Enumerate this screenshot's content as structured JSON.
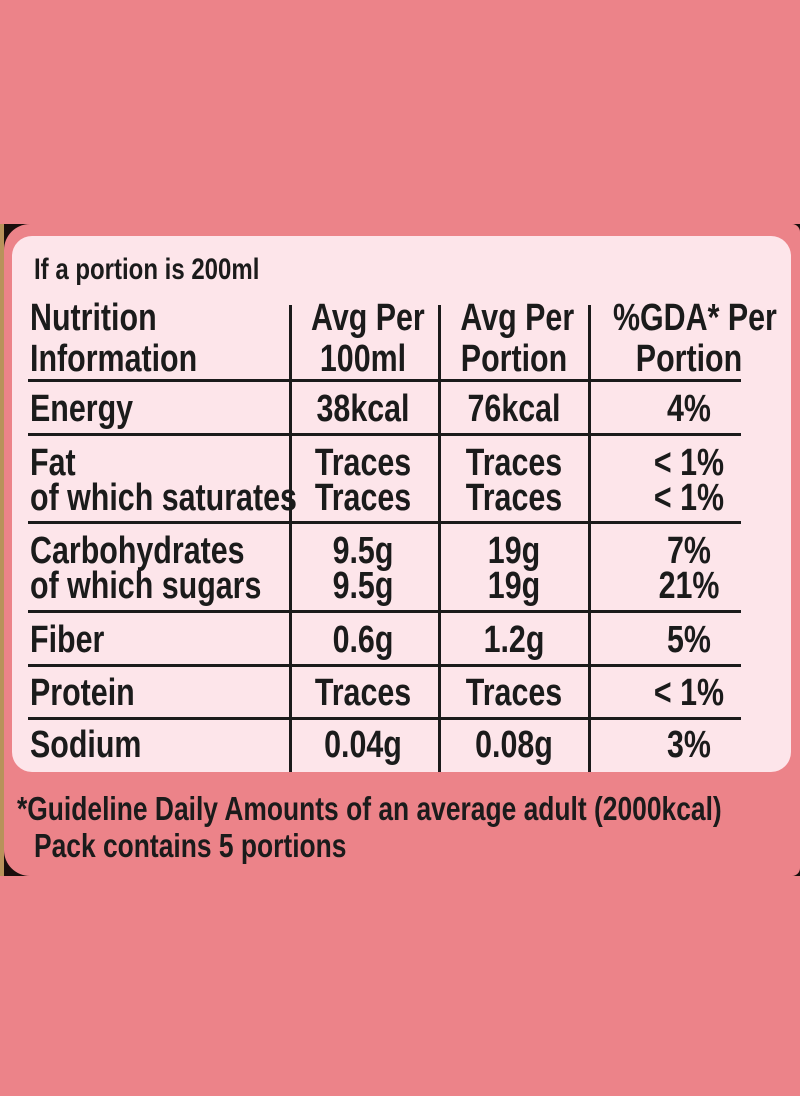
{
  "colors": {
    "background": "#ec8389",
    "table_background": "#fde5ea",
    "text": "#1b1b1b",
    "band": "#1a0e0c",
    "gold_edge": "#b8925a"
  },
  "portion_note": "If a portion is 200ml",
  "headers": {
    "nutrition": [
      "Nutrition",
      "Information"
    ],
    "per_100ml": [
      "Avg Per",
      "100ml"
    ],
    "per_portion": [
      "Avg Per",
      "Portion"
    ],
    "gda": [
      "%GDA* Per",
      "Portion"
    ]
  },
  "rows": [
    {
      "name": "Energy",
      "per100": "38kcal",
      "portion": "76kcal",
      "gda": "4%"
    },
    {
      "name": "Fat",
      "per100": "Traces",
      "portion": "Traces",
      "gda": "< 1%"
    },
    {
      "name": "of which saturates",
      "per100": "Traces",
      "portion": "Traces",
      "gda": "< 1%"
    },
    {
      "name": "Carbohydrates",
      "per100": "9.5g",
      "portion": "19g",
      "gda": "7%"
    },
    {
      "name": "of which sugars",
      "per100": "9.5g",
      "portion": "19g",
      "gda": "21%"
    },
    {
      "name": "Fiber",
      "per100": "0.6g",
      "portion": "1.2g",
      "gda": "5%"
    },
    {
      "name": "Protein",
      "per100": "Traces",
      "portion": "Traces",
      "gda": "< 1%"
    },
    {
      "name": "Sodium",
      "per100": "0.04g",
      "portion": "0.08g",
      "gda": "3%"
    }
  ],
  "footnote": "*Guideline Daily Amounts of an average adult (2000kcal)",
  "pack_note": "Pack contains 5 portions"
}
